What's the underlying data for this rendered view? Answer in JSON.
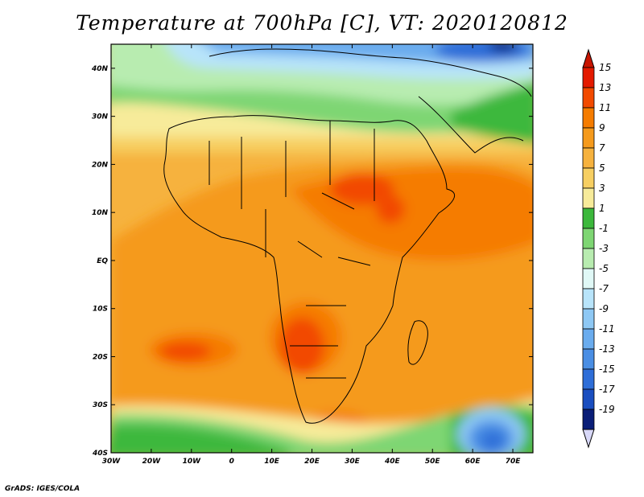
{
  "title": "Temperature at 700hPa [C], VT: 2020120812",
  "footer": "GrADS: IGES/COLA",
  "map": {
    "region": "Africa",
    "variable": "Temperature",
    "level": "700hPa",
    "units": "C",
    "valid_time": "2020120812",
    "lon_range": [
      -30,
      75
    ],
    "lat_range": [
      -40,
      45
    ],
    "lon_ticks": [
      {
        "value": -30,
        "label": "30W"
      },
      {
        "value": -20,
        "label": "20W"
      },
      {
        "value": -10,
        "label": "10W"
      },
      {
        "value": 0,
        "label": "0"
      },
      {
        "value": 10,
        "label": "10E"
      },
      {
        "value": 20,
        "label": "20E"
      },
      {
        "value": 30,
        "label": "30E"
      },
      {
        "value": 40,
        "label": "40E"
      },
      {
        "value": 50,
        "label": "50E"
      },
      {
        "value": 60,
        "label": "60E"
      },
      {
        "value": 70,
        "label": "70E"
      }
    ],
    "lat_ticks": [
      {
        "value": 40,
        "label": "40N"
      },
      {
        "value": 30,
        "label": "30N"
      },
      {
        "value": 20,
        "label": "20N"
      },
      {
        "value": 10,
        "label": "10N"
      },
      {
        "value": 0,
        "label": "EQ"
      },
      {
        "value": -10,
        "label": "10S"
      },
      {
        "value": -20,
        "label": "20S"
      },
      {
        "value": -30,
        "label": "30S"
      },
      {
        "value": -40,
        "label": "40S"
      }
    ]
  },
  "colorbar": {
    "levels": [
      {
        "label": "15",
        "color": "#e41a00"
      },
      {
        "label": "13",
        "color": "#f24a00"
      },
      {
        "label": "11",
        "color": "#f57c00"
      },
      {
        "label": "9",
        "color": "#f59a1c"
      },
      {
        "label": "7",
        "color": "#f6b23e"
      },
      {
        "label": "5",
        "color": "#f7cf62"
      },
      {
        "label": "3",
        "color": "#f7eb9a"
      },
      {
        "label": "1",
        "color": "#3cb83c"
      },
      {
        "label": "-1",
        "color": "#7ed673"
      },
      {
        "label": "-3",
        "color": "#b8ecb0"
      },
      {
        "label": "-5",
        "color": "#e0f8f6"
      },
      {
        "label": "-7",
        "color": "#b8e4fa"
      },
      {
        "label": "-9",
        "color": "#8ec8f4"
      },
      {
        "label": "-11",
        "color": "#6aacee"
      },
      {
        "label": "-13",
        "color": "#4a8ee4"
      },
      {
        "label": "-15",
        "color": "#2e6ed8"
      },
      {
        "label": "-17",
        "color": "#1a4ec0"
      },
      {
        "label": "-19",
        "color": "#0a1e78"
      }
    ],
    "top_color": "#c81400",
    "bottom_color": "#d8d8f8"
  }
}
